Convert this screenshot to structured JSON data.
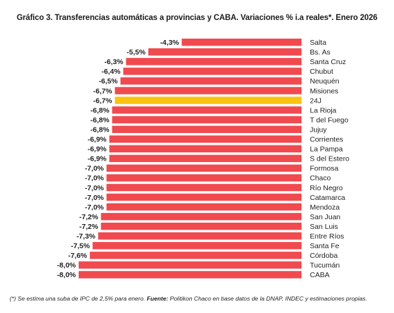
{
  "chart_data": {
    "type": "bar",
    "orientation": "horizontal",
    "title": "Gráfico 3. Transferencias automáticas a provincias y CABA. Variaciones % i.a reales*. Enero 2026",
    "categories": [
      "Salta",
      "Bs. As",
      "Santa Cruz",
      "Chubut",
      "Neuquén",
      "Misiones",
      "24J",
      "La Rioja",
      "T del Fuego",
      "Jujuy",
      "Corrientes",
      "La Pampa",
      "S del Estero",
      "Formosa",
      "Chaco",
      "Río Negro",
      "Catamarca",
      "Mendoza",
      "San Juan",
      "San Luis",
      "Entre Ríos",
      "Santa Fe",
      "Córdoba",
      "Tucumán",
      "CABA"
    ],
    "values": [
      -4.3,
      -5.5,
      -6.3,
      -6.4,
      -6.5,
      -6.7,
      -6.7,
      -6.8,
      -6.8,
      -6.8,
      -6.9,
      -6.9,
      -6.9,
      -7.0,
      -7.0,
      -7.0,
      -7.0,
      -7.0,
      -7.2,
      -7.2,
      -7.3,
      -7.5,
      -7.6,
      -8.0,
      -8.0
    ],
    "value_labels": [
      "-4,3%",
      "-5,5%",
      "-6,3%",
      "-6,4%",
      "-6,5%",
      "-6,7%",
      "-6,7%",
      "-6,8%",
      "-6,8%",
      "-6,8%",
      "-6,9%",
      "-6,9%",
      "-6,9%",
      "-7,0%",
      "-7,0%",
      "-7,0%",
      "-7,0%",
      "-7,0%",
      "-7,2%",
      "-7,2%",
      "-7,3%",
      "-7,5%",
      "-7,6%",
      "-8,0%",
      "-8,0%"
    ],
    "highlight_category": "24J",
    "colors": {
      "bar": "#f04a4f",
      "highlight": "#f9c30f"
    },
    "xlim": [
      -8.0,
      0
    ]
  },
  "footnote": {
    "prefix": "(*) Se estima una suba de IPC de 2,5% para enero. ",
    "source_label": "Fuente:",
    "source_text": " Politikon Chaco en base datos de la DNAP, INDEC y estimaciones propias."
  }
}
